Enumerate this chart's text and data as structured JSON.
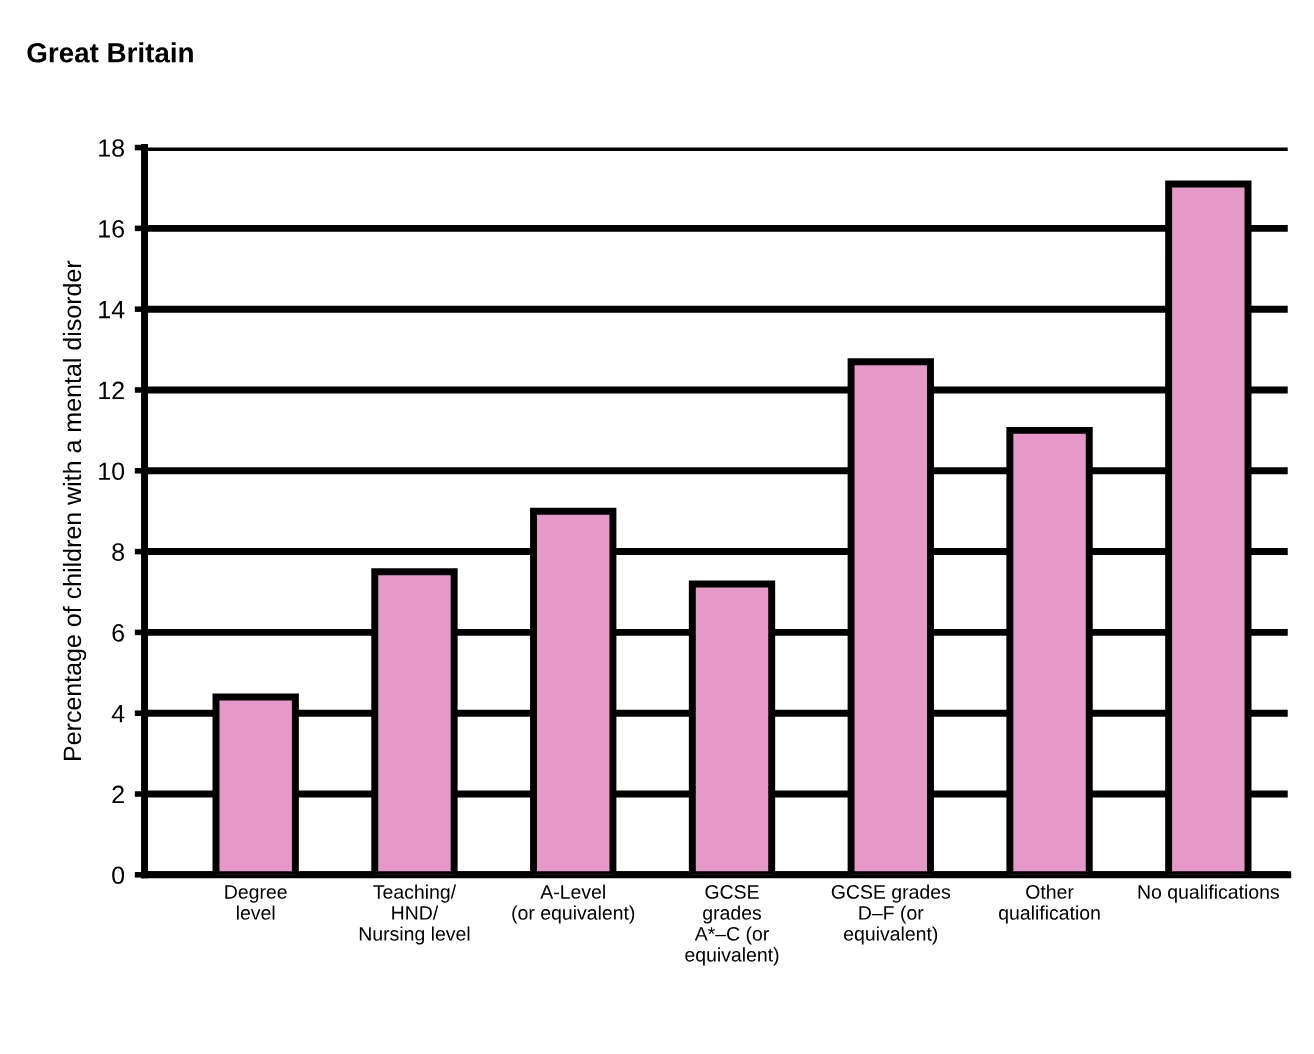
{
  "chart_data": {
    "type": "bar",
    "title": "Great Britain",
    "ylabel": "Percentage of children with a mental disorder",
    "categories": [
      "Degree\nlevel",
      "Teaching/\nHND/\nNursing level",
      "A-Level\n(or equivalent)",
      "GCSE\ngrades\nA*–C (or\nequivalent)",
      "GCSE grades\nD–F (or\nequivalent)",
      "Other\nqualification",
      "No qualifications"
    ],
    "values": [
      4.4,
      7.5,
      9.0,
      7.2,
      12.7,
      11.0,
      17.1
    ],
    "color": "#e699c8",
    "ylim": [
      0,
      18
    ],
    "yticks": [
      0,
      2,
      4,
      6,
      8,
      10,
      12,
      14,
      16,
      18
    ],
    "grid": "y"
  }
}
